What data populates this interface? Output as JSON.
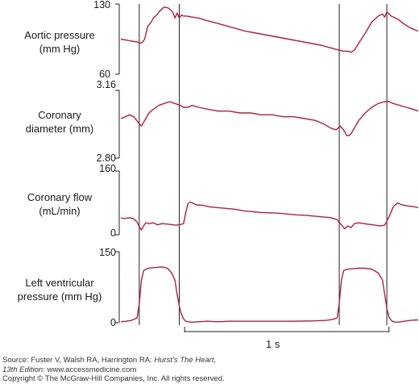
{
  "chart_data": {
    "type": "line",
    "panels": [
      {
        "label_lines": [
          "Aortic pressure",
          "(mm Hg)"
        ],
        "ylim": [
          60,
          130
        ],
        "ticks": [
          "130",
          "60"
        ],
        "series": [
          {
            "x": [
              0.0,
              0.05,
              0.1,
              0.16,
              0.18,
              0.2,
              0.22,
              0.25,
              0.28,
              0.3,
              0.33,
              0.36,
              0.4,
              0.44,
              0.48,
              0.5,
              0.52,
              0.54,
              0.56,
              0.58,
              0.61,
              0.66,
              0.72,
              0.78,
              0.85,
              0.95,
              1.05,
              1.15,
              1.25,
              1.35,
              1.45,
              1.55,
              1.65,
              1.75,
              1.85,
              1.95,
              2.02,
              2.06,
              2.1,
              2.13,
              2.16,
              2.2,
              2.26,
              2.32,
              2.38,
              2.42,
              2.44,
              2.46,
              2.5,
              2.56,
              2.62,
              2.68,
              2.75
            ],
            "y": [
              95,
              94,
              93,
              92,
              91,
              92,
              95,
              108,
              112,
              116,
              119,
              123,
              127,
              126,
              122,
              116,
              121,
              116,
              119,
              118,
              118,
              117,
              116,
              114,
              112,
              109,
              106,
              103,
              101,
              99,
              97,
              95,
              93,
              91,
              89,
              86,
              84,
              83,
              83,
              82,
              84,
              91,
              101,
              112,
              118,
              120,
              117,
              122,
              118,
              115,
              110,
              106,
              103
            ]
          }
        ]
      },
      {
        "label_lines": [
          "Coronary",
          "diameter (mm)"
        ],
        "ylim": [
          2.8,
          3.16
        ],
        "ticks": [
          "3.16",
          "2.80"
        ],
        "series": [
          {
            "x": [
              0.0,
              0.04,
              0.08,
              0.12,
              0.16,
              0.19,
              0.21,
              0.23,
              0.26,
              0.3,
              0.35,
              0.4,
              0.45,
              0.5,
              0.55,
              0.58,
              0.62,
              0.66,
              0.72,
              0.8,
              0.9,
              1.0,
              1.1,
              1.2,
              1.3,
              1.4,
              1.5,
              1.6,
              1.7,
              1.8,
              1.88,
              1.94,
              1.99,
              2.03,
              2.06,
              2.09,
              2.11,
              2.13,
              2.16,
              2.2,
              2.26,
              2.32,
              2.38,
              2.44,
              2.48,
              2.52,
              2.58,
              2.64,
              2.7,
              2.75
            ],
            "y": [
              3.01,
              3.02,
              3.03,
              3.02,
              2.99,
              2.97,
              2.99,
              3.01,
              3.04,
              3.06,
              3.08,
              3.09,
              3.1,
              3.09,
              3.08,
              3.07,
              3.07,
              3.08,
              3.07,
              3.06,
              3.05,
              3.05,
              3.04,
              3.04,
              3.03,
              3.03,
              3.02,
              3.02,
              3.01,
              3.0,
              2.98,
              2.96,
              2.95,
              2.97,
              2.95,
              2.92,
              2.92,
              2.93,
              2.96,
              3.0,
              3.04,
              3.07,
              3.09,
              3.1,
              3.1,
              3.09,
              3.08,
              3.07,
              3.06,
              3.05
            ]
          }
        ]
      },
      {
        "label_lines": [
          "Coronary flow",
          "(mL/min)"
        ],
        "ylim": [
          0,
          160
        ],
        "ticks": [
          "160",
          "0"
        ],
        "series": [
          {
            "x": [
              0.0,
              0.04,
              0.08,
              0.12,
              0.15,
              0.17,
              0.19,
              0.21,
              0.23,
              0.26,
              0.3,
              0.34,
              0.38,
              0.42,
              0.46,
              0.5,
              0.54,
              0.58,
              0.6,
              0.62,
              0.64,
              0.66,
              0.7,
              0.76,
              0.82,
              0.9,
              0.98,
              1.06,
              1.14,
              1.22,
              1.3,
              1.38,
              1.46,
              1.54,
              1.62,
              1.7,
              1.78,
              1.86,
              1.94,
              2.0,
              2.04,
              2.07,
              2.1,
              2.13,
              2.16,
              2.2,
              2.25,
              2.3,
              2.35,
              2.4,
              2.44,
              2.48,
              2.52,
              2.56,
              2.6,
              2.66,
              2.72,
              2.75
            ],
            "y": [
              42,
              41,
              43,
              40,
              32,
              20,
              12,
              22,
              30,
              28,
              30,
              25,
              28,
              27,
              26,
              24,
              25,
              28,
              55,
              78,
              82,
              80,
              75,
              74,
              70,
              68,
              66,
              64,
              60,
              58,
              56,
              55,
              54,
              52,
              50,
              49,
              47,
              45,
              43,
              38,
              25,
              15,
              22,
              18,
              28,
              30,
              28,
              26,
              24,
              22,
              24,
              45,
              70,
              80,
              75,
              72,
              70,
              68
            ]
          }
        ]
      },
      {
        "label_lines": [
          "Left ventricular",
          "pressure (mm Hg)"
        ],
        "ylim": [
          0,
          150
        ],
        "ticks": [
          "150",
          "0"
        ],
        "series": [
          {
            "x": [
              0.0,
              0.05,
              0.1,
              0.15,
              0.17,
              0.19,
              0.21,
              0.24,
              0.28,
              0.33,
              0.38,
              0.43,
              0.47,
              0.5,
              0.52,
              0.54,
              0.56,
              0.58,
              0.6,
              0.62,
              0.66,
              0.72,
              0.8,
              0.9,
              1.0,
              1.2,
              1.4,
              1.6,
              1.8,
              1.9,
              1.96,
              2.0,
              2.02,
              2.04,
              2.06,
              2.08,
              2.1,
              2.14,
              2.2,
              2.26,
              2.32,
              2.38,
              2.42,
              2.44,
              2.46,
              2.48,
              2.5,
              2.52,
              2.56,
              2.62,
              2.68,
              2.75
            ],
            "y": [
              2,
              3,
              5,
              10,
              40,
              90,
              110,
              114,
              116,
              117,
              118,
              115,
              105,
              90,
              60,
              35,
              18,
              8,
              3,
              2,
              1,
              2,
              3,
              2,
              3,
              3,
              3,
              3,
              4,
              5,
              7,
              10,
              40,
              90,
              110,
              112,
              113,
              114,
              115,
              115,
              113,
              105,
              90,
              60,
              30,
              12,
              5,
              2,
              1,
              3,
              5,
              6
            ]
          }
        ]
      }
    ],
    "scale_bar_label": "1 s",
    "line_color": "#b0203c"
  },
  "source": {
    "prefix": "Source: Fuster V, Walsh RA, Harrington RA: ",
    "book_title": "Hurst's The Heart,",
    "edition": "13th Edition:",
    "website": " www.accessmedicine.com",
    "copyright": "Copyright © The McGraw-Hill Companies, Inc. All rights reserved."
  }
}
